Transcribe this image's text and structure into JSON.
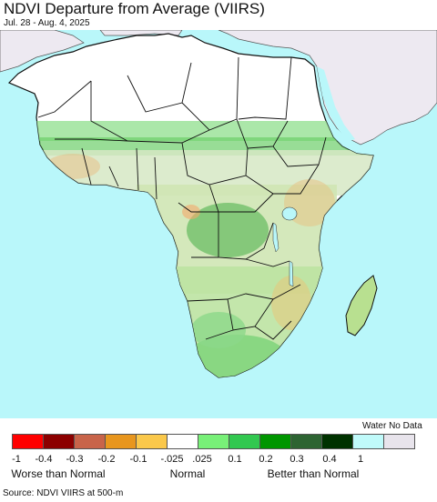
{
  "header": {
    "title": "NDVI Departure from Average (VIIRS)",
    "dates": "Jul. 28 - Aug. 4, 2025"
  },
  "legend": {
    "water_label": "Water No Data",
    "swatches": [
      {
        "color": "#ff0000"
      },
      {
        "color": "#8c0000"
      },
      {
        "color": "#c8644a"
      },
      {
        "color": "#e8961e"
      },
      {
        "color": "#fac84b"
      },
      {
        "color": "#ffffff"
      },
      {
        "color": "#78f078"
      },
      {
        "color": "#32c850"
      },
      {
        "color": "#009600"
      },
      {
        "color": "#2d6432"
      },
      {
        "color": "#003200"
      },
      {
        "color": "#c0fafa"
      },
      {
        "color": "#e8e4ec"
      }
    ],
    "ticks": [
      "-1",
      "-0.4",
      "-0.3",
      "-0.2",
      "-0.1",
      "-.025",
      ".025",
      "0.1",
      "0.2",
      "0.3",
      "0.4",
      "1"
    ],
    "categories": [
      "Worse than Normal",
      "Normal",
      "Better than Normal"
    ]
  },
  "source": "Source: NDVI VIIRS at 500-m",
  "colors": {
    "ocean": "#b9f7fa",
    "no_data_land": "#ede9f1",
    "desert": "#ffffff",
    "border": "#111111"
  }
}
